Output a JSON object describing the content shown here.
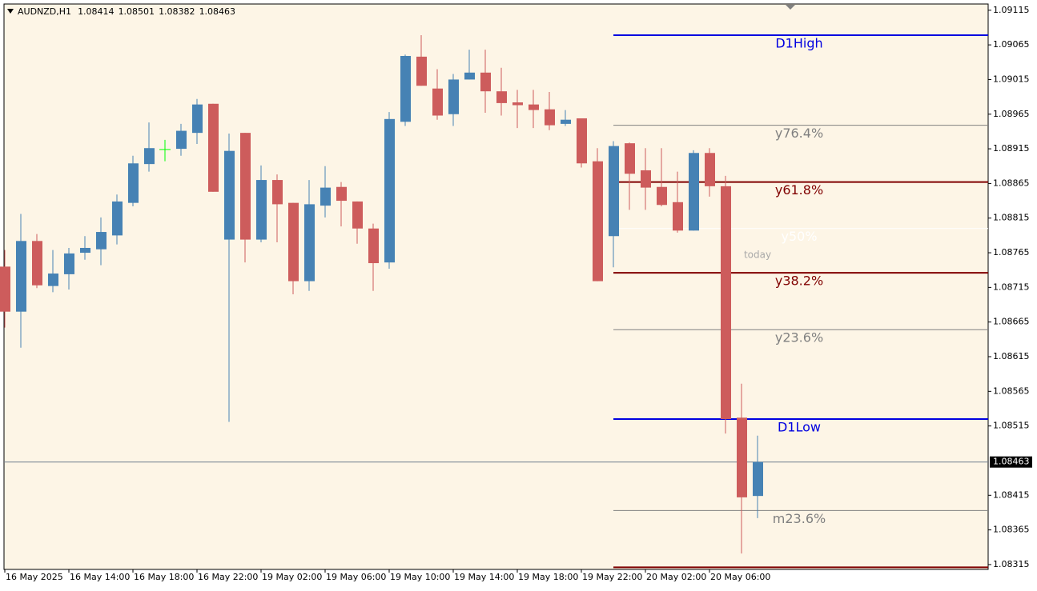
{
  "chart_data": {
    "type": "candlestick",
    "symbol": "AUDNZD,H1",
    "up_color": "#4682b4",
    "down_color": "#cd5c5c",
    "doji_color": "#00ff00",
    "background": "#fdf5e6",
    "categories": [
      "16 May 2025",
      null,
      null,
      null,
      "16 May 14:00",
      null,
      null,
      null,
      "16 May 18:00",
      null,
      null,
      null,
      "16 May 22:00",
      null,
      null,
      null,
      "19 May 02:00",
      null,
      null,
      null,
      "19 May 06:00",
      null,
      null,
      null,
      "19 May 10:00",
      null,
      null,
      null,
      "19 May 14:00",
      null,
      null,
      null,
      "19 May 18:00",
      null,
      null,
      null,
      "19 May 22:00",
      null,
      null,
      null,
      "20 May 02:00",
      null,
      null,
      null,
      "20 May 06:00",
      null,
      null,
      null
    ],
    "open": [
      1.08745,
      1.0868,
      1.08782,
      1.08717,
      1.08734,
      1.08765,
      1.0877,
      1.0879,
      1.08837,
      1.08893,
      1.08914,
      1.08915,
      1.08938,
      1.0898,
      1.08784,
      1.08938,
      1.08784,
      1.0887,
      1.08837,
      1.08724,
      1.08833,
      1.0886,
      1.08839,
      1.088,
      1.08751,
      1.08954,
      1.09048,
      1.09002,
      1.08965,
      1.09015,
      1.09025,
      1.08998,
      1.08982,
      1.08979,
      1.08972,
      1.08951,
      1.08959,
      1.08897,
      1.08789,
      1.08923,
      1.08884,
      1.0886,
      1.08838,
      1.08797,
      1.08909,
      1.08861,
      1.08527,
      1.08414
    ],
    "high": [
      1.08769,
      1.08821,
      1.08792,
      1.08769,
      1.08772,
      1.08789,
      1.08816,
      1.08849,
      1.08905,
      1.08953,
      1.08928,
      1.08951,
      1.08987,
      1.0898,
      1.08937,
      1.08938,
      1.08891,
      1.08878,
      1.08837,
      1.0887,
      1.0889,
      1.08867,
      1.08839,
      1.08807,
      1.08968,
      1.09051,
      1.09079,
      1.0903,
      1.09023,
      1.09058,
      1.09058,
      1.09032,
      1.09,
      1.09,
      1.08997,
      1.08971,
      1.08959,
      1.08916,
      1.08926,
      1.08924,
      1.08916,
      1.08916,
      1.08882,
      1.08913,
      1.08916,
      1.08876,
      1.08576,
      1.08501
    ],
    "low": [
      1.08657,
      1.08628,
      1.08714,
      1.08708,
      1.08712,
      1.08755,
      1.08747,
      1.08777,
      1.08832,
      1.08882,
      1.08897,
      1.08905,
      1.08922,
      1.08853,
      1.08521,
      1.08751,
      1.0878,
      1.0878,
      1.08705,
      1.0871,
      1.08816,
      1.08803,
      1.08778,
      1.0871,
      1.08742,
      1.08948,
      1.09006,
      1.08957,
      1.08948,
      1.09015,
      1.08967,
      1.08963,
      1.08945,
      1.08945,
      1.08942,
      1.08948,
      1.08888,
      1.08724,
      1.08744,
      1.08827,
      1.08827,
      1.08832,
      1.08794,
      1.08797,
      1.08846,
      1.08504,
      1.08331,
      1.08382
    ],
    "close": [
      1.0868,
      1.08782,
      1.08718,
      1.08735,
      1.08764,
      1.08772,
      1.08795,
      1.08839,
      1.08894,
      1.08916,
      1.08914,
      1.08941,
      1.08979,
      1.08853,
      1.08912,
      1.08784,
      1.0887,
      1.08835,
      1.08724,
      1.08835,
      1.08859,
      1.0884,
      1.088,
      1.0875,
      1.08958,
      1.09049,
      1.09006,
      1.08963,
      1.09015,
      1.09025,
      1.08998,
      1.08981,
      1.08978,
      1.08971,
      1.08949,
      1.08957,
      1.08894,
      1.08724,
      1.08919,
      1.08879,
      1.08859,
      1.08834,
      1.08797,
      1.08909,
      1.08861,
      1.08525,
      1.08412,
      1.08463
    ],
    "ylim": [
      1.08308,
      1.09124
    ],
    "yticks": [
      1.09115,
      1.09065,
      1.09015,
      1.08965,
      1.08915,
      1.08865,
      1.08815,
      1.08765,
      1.08715,
      1.08665,
      1.08615,
      1.08565,
      1.08515,
      1.08415,
      1.08365,
      1.08315
    ],
    "last_price": 1.08463,
    "levels": [
      {
        "name": "D1High",
        "value": 1.09079,
        "color": "#0000e0",
        "width": 2
      },
      {
        "name": "y76.4%",
        "value": 1.08949,
        "color": "#808080",
        "width": 1
      },
      {
        "name": "y61.8%",
        "value": 1.08867,
        "color": "#800000",
        "width": 2
      },
      {
        "name": "y50%",
        "value": 1.088,
        "color": "#ffffff",
        "width": 1
      },
      {
        "name": "y38.2%",
        "value": 1.08736,
        "color": "#800000",
        "width": 2
      },
      {
        "name": "y23.6%",
        "value": 1.08654,
        "color": "#808080",
        "width": 1
      },
      {
        "name": "D1Low",
        "value": 1.08525,
        "color": "#0000e0",
        "width": 2
      },
      {
        "name": "m23.6%",
        "value": 1.08393,
        "color": "#808080",
        "width": 1
      },
      {
        "value": 1.08311,
        "color": "#800000",
        "width": 2
      }
    ],
    "annotation": "today"
  }
}
